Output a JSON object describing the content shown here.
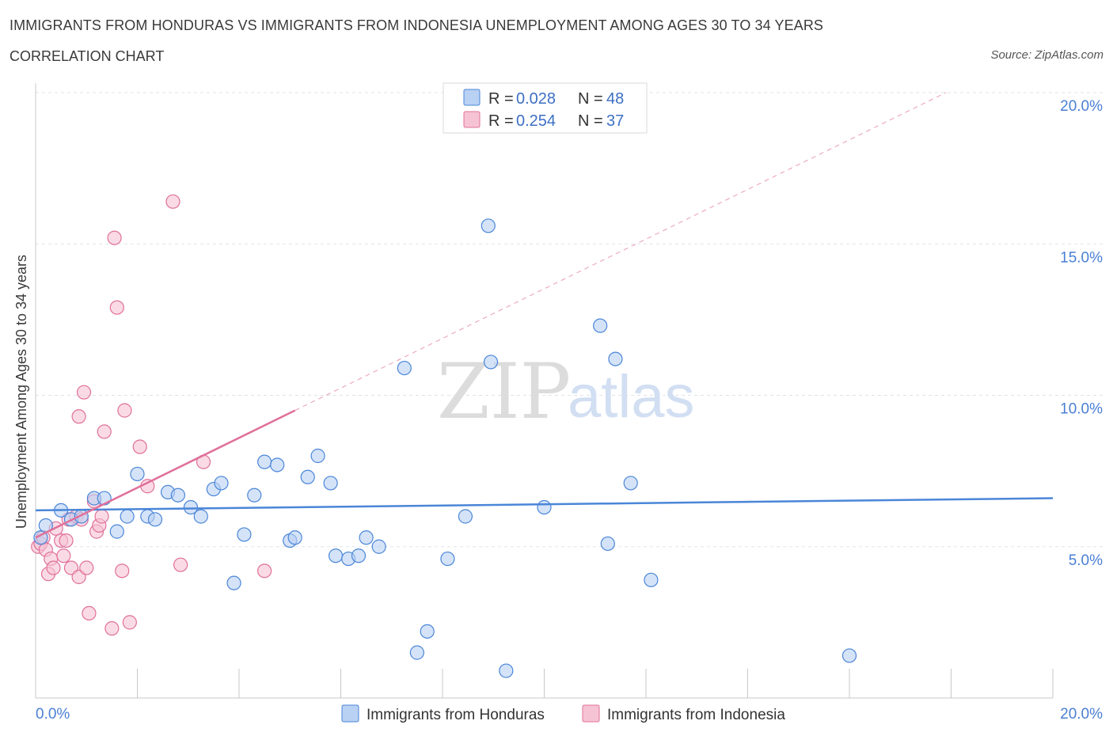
{
  "header": {
    "title": "IMMIGRANTS FROM HONDURAS VS IMMIGRANTS FROM INDONESIA UNEMPLOYMENT AMONG AGES 30 TO 34 YEARS",
    "subtitle": "CORRELATION CHART",
    "source": "Source: ZipAtlas.com"
  },
  "watermark": {
    "zip": "ZIP",
    "atlas": "atlas"
  },
  "colors": {
    "honduras": "#4a86d8",
    "honduras_fill": "#b9d1f3",
    "indonesia": "#e0709a",
    "indonesia_fill": "#f6c3d4",
    "grid": "#dde3ea",
    "axis_label": "#4a7fd4"
  },
  "legend": {
    "rows": [
      {
        "r_label": "R = ",
        "r_value": "0.028",
        "n_label": "N = ",
        "n_value": "48",
        "series": "honduras"
      },
      {
        "r_label": "R = ",
        "r_value": "0.254",
        "n_label": "N = ",
        "n_value": "37",
        "series": "indonesia"
      }
    ]
  },
  "chart_data": {
    "type": "scatter",
    "title": "IMMIGRANTS FROM HONDURAS VS IMMIGRANTS FROM INDONESIA UNEMPLOYMENT AMONG AGES 30 TO 34 YEARS",
    "xlabel": "",
    "ylabel": "Unemployment Among Ages 30 to 34 years",
    "xlim": [
      0,
      20
    ],
    "ylim": [
      0,
      20
    ],
    "x_tick_labels": [
      "0.0%",
      "20.0%"
    ],
    "y_ticks": [
      {
        "value": 5,
        "label": "5.0%"
      },
      {
        "value": 10,
        "label": "10.0%"
      },
      {
        "value": 15,
        "label": "15.0%"
      },
      {
        "value": 20,
        "label": "20.0%"
      }
    ],
    "legend_position": "bottom-center",
    "series": [
      {
        "name": "Immigrants from Honduras",
        "color_key": "honduras",
        "r": 0.028,
        "n": 48,
        "trend": {
          "x0": 0,
          "y0": 6.2,
          "x1": 20,
          "y1": 6.6,
          "style": "solid"
        },
        "points": [
          [
            0.1,
            5.3
          ],
          [
            0.2,
            5.7
          ],
          [
            0.5,
            6.2
          ],
          [
            0.7,
            5.9
          ],
          [
            0.9,
            6.0
          ],
          [
            1.15,
            6.6
          ],
          [
            1.35,
            6.6
          ],
          [
            1.6,
            5.5
          ],
          [
            1.8,
            6.0
          ],
          [
            2.0,
            7.4
          ],
          [
            2.2,
            6.0
          ],
          [
            2.35,
            5.9
          ],
          [
            2.6,
            6.8
          ],
          [
            2.8,
            6.7
          ],
          [
            3.05,
            6.3
          ],
          [
            3.25,
            6.0
          ],
          [
            3.5,
            6.9
          ],
          [
            3.65,
            7.1
          ],
          [
            3.9,
            3.8
          ],
          [
            4.1,
            5.4
          ],
          [
            4.3,
            6.7
          ],
          [
            4.5,
            7.8
          ],
          [
            4.75,
            7.7
          ],
          [
            5.0,
            5.2
          ],
          [
            5.1,
            5.3
          ],
          [
            5.35,
            7.3
          ],
          [
            5.55,
            8.0
          ],
          [
            5.8,
            7.1
          ],
          [
            5.9,
            4.7
          ],
          [
            6.15,
            4.6
          ],
          [
            6.35,
            4.7
          ],
          [
            6.5,
            5.3
          ],
          [
            6.75,
            5.0
          ],
          [
            7.25,
            10.9
          ],
          [
            7.5,
            1.5
          ],
          [
            7.7,
            2.2
          ],
          [
            8.1,
            4.6
          ],
          [
            8.45,
            6.0
          ],
          [
            8.9,
            15.6
          ],
          [
            8.95,
            11.1
          ],
          [
            9.25,
            0.9
          ],
          [
            10.0,
            6.3
          ],
          [
            11.1,
            12.3
          ],
          [
            11.25,
            5.1
          ],
          [
            11.4,
            11.2
          ],
          [
            11.7,
            7.1
          ],
          [
            12.1,
            3.9
          ],
          [
            16.0,
            1.4
          ]
        ]
      },
      {
        "name": "Immigrants from Indonesia",
        "color_key": "indonesia",
        "r": 0.254,
        "n": 37,
        "trend_solid": {
          "x0": 0,
          "y0": 5.3,
          "x1": 5.1,
          "y1": 9.5,
          "style": "solid"
        },
        "trend_dashed": {
          "x0": 5.1,
          "y0": 9.5,
          "x1": 17.9,
          "y1": 20.0,
          "style": "dashed"
        },
        "points": [
          [
            0.05,
            5.0
          ],
          [
            0.1,
            5.1
          ],
          [
            0.15,
            5.3
          ],
          [
            0.2,
            4.9
          ],
          [
            0.25,
            4.1
          ],
          [
            0.3,
            4.6
          ],
          [
            0.35,
            4.3
          ],
          [
            0.4,
            5.6
          ],
          [
            0.5,
            5.2
          ],
          [
            0.55,
            4.7
          ],
          [
            0.65,
            5.9
          ],
          [
            0.7,
            4.3
          ],
          [
            0.8,
            6.0
          ],
          [
            0.85,
            4.0
          ],
          [
            0.85,
            9.3
          ],
          [
            0.95,
            10.1
          ],
          [
            1.0,
            4.3
          ],
          [
            1.05,
            2.8
          ],
          [
            1.15,
            6.5
          ],
          [
            1.2,
            5.5
          ],
          [
            1.25,
            5.7
          ],
          [
            1.3,
            6.0
          ],
          [
            1.35,
            8.8
          ],
          [
            1.5,
            2.3
          ],
          [
            1.55,
            15.2
          ],
          [
            1.6,
            12.9
          ],
          [
            1.7,
            4.2
          ],
          [
            1.75,
            9.5
          ],
          [
            1.85,
            2.5
          ],
          [
            2.05,
            8.3
          ],
          [
            2.2,
            7.0
          ],
          [
            2.7,
            16.4
          ],
          [
            2.85,
            4.4
          ],
          [
            3.3,
            7.8
          ],
          [
            4.5,
            4.2
          ],
          [
            0.6,
            5.2
          ],
          [
            0.9,
            5.9
          ]
        ]
      }
    ]
  },
  "bottom_legend": [
    {
      "label": "Immigrants from Honduras",
      "series": "honduras"
    },
    {
      "label": "Immigrants from Indonesia",
      "series": "indonesia"
    }
  ]
}
